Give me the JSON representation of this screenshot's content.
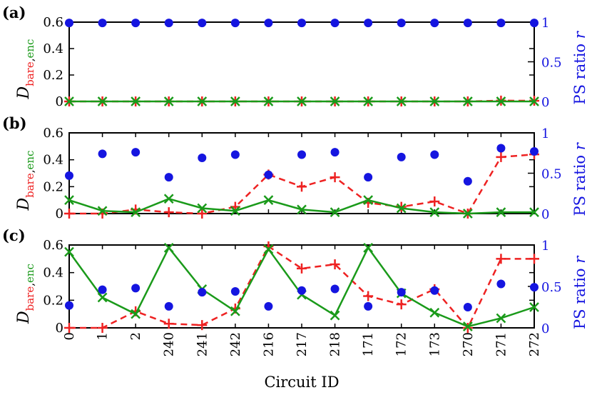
{
  "chart_data": {
    "type": "line",
    "xlabel": "Circuit ID",
    "categories": [
      "0",
      "1",
      "2",
      "240",
      "241",
      "242",
      "216",
      "217",
      "218",
      "171",
      "172",
      "173",
      "270",
      "271",
      "272"
    ],
    "left_ylabel": {
      "main": "D",
      "sub_bare": "bare",
      "sub_sep": ",",
      "sub_enc": "enc"
    },
    "right_ylabel": {
      "text": "PS ratio ",
      "var": "r"
    },
    "colors": {
      "bare": "#ee2222",
      "enc": "#1a9a1a",
      "ps": "#1515e0"
    },
    "panels": [
      {
        "label": "(a)",
        "ylim_left": [
          0,
          0.6
        ],
        "yticks_left": [
          "0",
          "0.2",
          "0.4",
          "0.6"
        ],
        "ylim_right": [
          0,
          1
        ],
        "yticks_right": [
          "0",
          "0.5",
          "1"
        ],
        "series": [
          {
            "id": "bare",
            "marker": "plus",
            "line": "dashed",
            "values": [
              0,
              0,
              0,
              0,
              0,
              0,
              0,
              0,
              0,
              0,
              0,
              0,
              0,
              0.006,
              0.005
            ]
          },
          {
            "id": "enc",
            "marker": "cross",
            "line": "solid",
            "values": [
              0,
              0,
              0,
              0,
              0,
              0,
              0,
              0,
              0,
              0,
              0,
              0,
              0,
              0,
              0
            ]
          },
          {
            "id": "ps",
            "marker": "circle",
            "axis": "right",
            "values": [
              0.99,
              0.99,
              0.99,
              0.99,
              0.99,
              0.99,
              0.99,
              0.99,
              0.99,
              0.99,
              0.99,
              0.99,
              0.99,
              0.99,
              0.99
            ]
          }
        ]
      },
      {
        "label": "(b)",
        "ylim_left": [
          0,
          0.6
        ],
        "yticks_left": [
          "0",
          "0.2",
          "0.4",
          "0.6"
        ],
        "ylim_right": [
          0,
          1
        ],
        "yticks_right": [
          "0",
          "0.5",
          "1"
        ],
        "series": [
          {
            "id": "bare",
            "marker": "plus",
            "line": "dashed",
            "values": [
              0,
              0,
              0.03,
              0.01,
              0,
              0.05,
              0.29,
              0.2,
              0.27,
              0.08,
              0.05,
              0.09,
              0,
              0.42,
              0.44
            ]
          },
          {
            "id": "enc",
            "marker": "cross",
            "line": "solid",
            "values": [
              0.1,
              0.02,
              0.01,
              0.11,
              0.04,
              0.02,
              0.1,
              0.03,
              0.01,
              0.1,
              0.04,
              0.01,
              0,
              0.01,
              0.01
            ]
          },
          {
            "id": "ps",
            "marker": "circle",
            "axis": "right",
            "values": [
              0.47,
              0.74,
              0.76,
              0.45,
              0.69,
              0.73,
              0.48,
              0.73,
              0.76,
              0.45,
              0.7,
              0.73,
              0.4,
              0.81,
              0.77
            ]
          }
        ]
      },
      {
        "label": "(c)",
        "ylim_left": [
          0,
          0.6
        ],
        "yticks_left": [
          "0",
          "0.2",
          "0.4",
          "0.6"
        ],
        "ylim_right": [
          0,
          1
        ],
        "yticks_right": [
          "0",
          "0.5",
          "1"
        ],
        "series": [
          {
            "id": "bare",
            "marker": "plus",
            "line": "dashed",
            "values": [
              0,
              0,
              0.12,
              0.03,
              0.02,
              0.14,
              0.59,
              0.43,
              0.46,
              0.23,
              0.17,
              0.28,
              0,
              0.5,
              0.5
            ]
          },
          {
            "id": "enc",
            "marker": "cross",
            "line": "solid",
            "values": [
              0.55,
              0.22,
              0.1,
              0.58,
              0.28,
              0.12,
              0.57,
              0.24,
              0.09,
              0.58,
              0.25,
              0.11,
              0.01,
              0.07,
              0.15
            ]
          },
          {
            "id": "ps",
            "marker": "circle",
            "axis": "right",
            "values": [
              0.27,
              0.46,
              0.48,
              0.26,
              0.43,
              0.44,
              0.26,
              0.45,
              0.47,
              0.26,
              0.43,
              0.45,
              0.25,
              0.53,
              0.49
            ]
          }
        ]
      }
    ]
  }
}
